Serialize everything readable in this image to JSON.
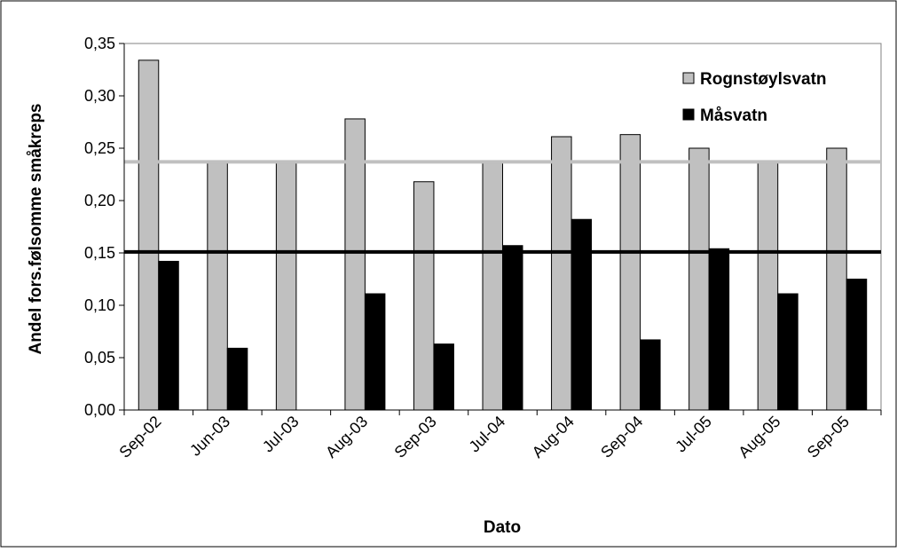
{
  "chart_data": {
    "type": "bar",
    "categories": [
      "Sep-02",
      "Jun-03",
      "Jul-03",
      "Aug-03",
      "Sep-03",
      "Jul-04",
      "Aug-04",
      "Sep-04",
      "Jul-05",
      "Aug-05",
      "Sep-05"
    ],
    "series": [
      {
        "name": "Rognstøylsvatn",
        "color": "#c0c0c0",
        "values": [
          0.334,
          0.236,
          0.236,
          0.278,
          0.218,
          0.236,
          0.261,
          0.263,
          0.25,
          0.236,
          0.25
        ]
      },
      {
        "name": "Måsvatn",
        "color": "#000000",
        "values": [
          0.142,
          0.059,
          0.0,
          0.111,
          0.063,
          0.157,
          0.182,
          0.067,
          0.154,
          0.111,
          0.125
        ]
      }
    ],
    "reference_lines": [
      {
        "series": "Rognstøylsvatn",
        "value": 0.237,
        "color": "#c0c0c0"
      },
      {
        "series": "Måsvatn",
        "value": 0.151,
        "color": "#000000"
      }
    ],
    "y_ticks": [
      "0,00",
      "0,05",
      "0,10",
      "0,15",
      "0,20",
      "0,25",
      "0,30",
      "0,35"
    ],
    "ylim": [
      0,
      0.35
    ],
    "title": "",
    "xlabel": "Dato",
    "ylabel": "Andel fors.følsomme småkreps",
    "legend_position": "top-right",
    "grid": false
  }
}
